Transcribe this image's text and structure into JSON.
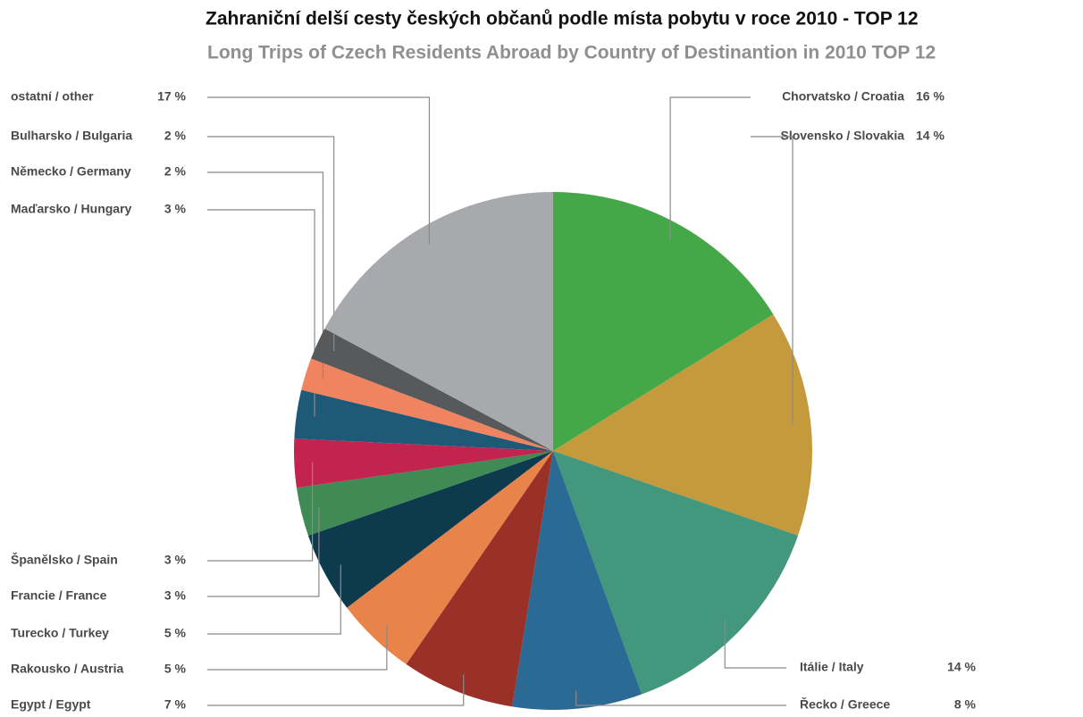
{
  "chart_data": {
    "type": "pie",
    "title": "Zahraniční delší cesty českých občanů podle místa pobytu v roce 2010 - TOP 12",
    "subtitle": "Long Trips of Czech Residents Abroad by Country of Destinantion in 2010 TOP 12",
    "categories": [
      "Chorvatsko / Croatia",
      "Slovensko / Slovakia",
      "Itálie / Italy",
      "Řecko / Greece",
      "Egypt / Egypt",
      "Rakousko / Austria",
      "Turecko / Turkey",
      "Francie / France",
      "Španělsko / Spain",
      "Maďarsko / Hungary",
      "Německo / Germany",
      "Bulharsko / Bulgaria",
      "ostatní / other"
    ],
    "values": [
      16,
      14,
      14,
      8,
      7,
      5,
      5,
      3,
      3,
      3,
      2,
      2,
      17
    ],
    "value_labels": [
      "16 %",
      "14 %",
      "14 %",
      "8 %",
      "7 %",
      "5 %",
      "5 %",
      "3 %",
      "3 %",
      "3 %",
      "2 %",
      "2 %",
      "17 %"
    ],
    "colors": [
      "#45a848",
      "#c49a3c",
      "#42977c",
      "#2a6a94",
      "#9a3128",
      "#e8834a",
      "#0e3a4e",
      "#3f8a55",
      "#c3244f",
      "#1e5a78",
      "#f08460",
      "#58595b",
      "#a7a9ac"
    ]
  }
}
